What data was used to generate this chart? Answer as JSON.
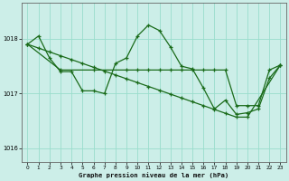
{
  "background_color": "#cceee8",
  "grid_color": "#99ddcc",
  "line_color": "#1a6b1a",
  "ylim": [
    1015.75,
    1018.65
  ],
  "yticks": [
    1016,
    1017,
    1018
  ],
  "xlim": [
    -0.5,
    23.5
  ],
  "xticks": [
    0,
    1,
    2,
    3,
    4,
    5,
    6,
    7,
    8,
    9,
    10,
    11,
    12,
    13,
    14,
    15,
    16,
    17,
    18,
    19,
    20,
    21,
    22,
    23
  ],
  "xlabel": "Graphe pression niveau de la mer (hPa)",
  "line1_x": [
    0,
    1,
    2,
    3,
    4,
    5,
    6,
    7,
    8,
    9,
    10,
    11,
    12,
    13,
    14,
    15,
    16,
    17,
    18,
    19,
    20,
    21,
    22,
    23
  ],
  "line1_y": [
    1017.9,
    1018.05,
    1017.65,
    1017.4,
    1017.4,
    1017.05,
    1017.05,
    1017.0,
    1017.55,
    1017.65,
    1018.05,
    1018.25,
    1018.15,
    1017.85,
    1017.5,
    1017.45,
    1017.1,
    1016.72,
    1016.88,
    1016.62,
    1016.65,
    1016.72,
    1017.28,
    1017.52
  ],
  "line2_x": [
    0,
    1,
    2,
    3,
    4,
    5,
    6,
    7,
    8,
    9,
    10,
    11,
    12,
    13,
    14,
    15,
    16,
    17,
    18,
    19,
    20,
    23
  ],
  "line2_y": [
    1017.9,
    1017.83,
    1017.76,
    1017.69,
    1017.62,
    1017.55,
    1017.48,
    1017.41,
    1017.34,
    1017.27,
    1017.2,
    1017.13,
    1017.06,
    1016.99,
    1016.92,
    1016.85,
    1016.78,
    1016.71,
    1016.64,
    1016.57,
    1016.57,
    1017.52
  ],
  "line3_x": [
    0,
    3,
    6,
    9,
    10,
    11,
    12,
    13,
    14,
    15,
    16,
    17,
    18,
    19,
    20,
    21,
    22,
    23
  ],
  "line3_y": [
    1017.9,
    1017.43,
    1017.43,
    1017.43,
    1017.43,
    1017.43,
    1017.43,
    1017.43,
    1017.43,
    1017.43,
    1017.43,
    1017.43,
    1017.43,
    1016.78,
    1016.78,
    1016.78,
    1017.43,
    1017.52
  ]
}
